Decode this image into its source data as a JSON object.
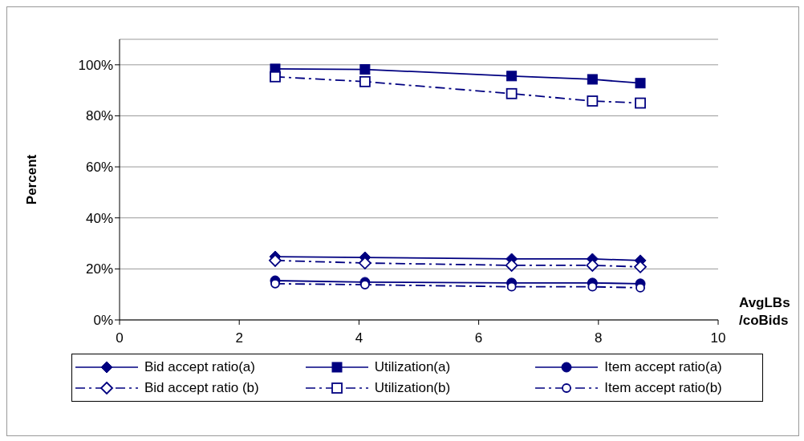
{
  "chart_data": {
    "type": "line",
    "ylabel": "Percent",
    "xlabel": "AvgLBs /coBids",
    "x": [
      2.6,
      4.1,
      6.55,
      7.9,
      8.7
    ],
    "series": [
      {
        "name": "Bid accept ratio(a)",
        "color": "#000080",
        "marker": "diamond",
        "line_style": "solid",
        "values": [
          24.8,
          24.5,
          23.9,
          23.9,
          23.3
        ]
      },
      {
        "name": "Utilization(a)",
        "color": "#000080",
        "marker": "square",
        "line_style": "solid",
        "values": [
          98.4,
          98.2,
          95.6,
          94.3,
          92.8
        ]
      },
      {
        "name": "Item accept ratio(a)",
        "color": "#000080",
        "marker": "circle",
        "line_style": "solid",
        "values": [
          15.4,
          14.8,
          14.5,
          14.5,
          14.2
        ]
      },
      {
        "name": "Bid accept ratio (b)",
        "color": "#000080",
        "marker": "diamond",
        "line_style": "dashed",
        "values": [
          23.3,
          22.3,
          21.4,
          21.4,
          20.8
        ]
      },
      {
        "name": "Utilization(b)",
        "color": "#000080",
        "marker": "square",
        "line_style": "dashed",
        "values": [
          95.3,
          93.4,
          88.7,
          85.8,
          85
        ]
      },
      {
        "name": "Item accept ratio(b)",
        "color": "#000080",
        "marker": "circle",
        "line_style": "dashed",
        "values": [
          14.2,
          13.8,
          13,
          13,
          12.6
        ]
      }
    ],
    "xlim": [
      0,
      10
    ],
    "xticks": [
      0,
      2,
      4,
      6,
      8,
      10
    ],
    "ylim": [
      0,
      110
    ],
    "yticks": [
      {
        "value": 0,
        "label": "0%"
      },
      {
        "value": 20,
        "label": "20%"
      },
      {
        "value": 40,
        "label": "40%"
      },
      {
        "value": 60,
        "label": "60%"
      },
      {
        "value": 80,
        "label": "80%"
      },
      {
        "value": 100,
        "label": "100%"
      }
    ],
    "grid": "y",
    "legend": "bottom"
  }
}
